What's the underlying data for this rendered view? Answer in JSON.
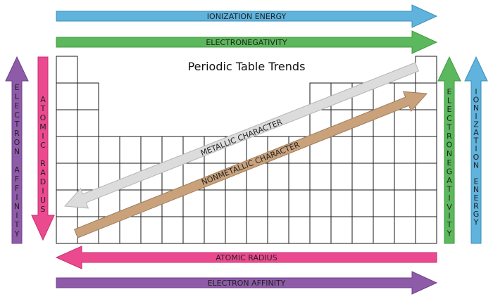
{
  "title": "Periodic Table Trends",
  "arrows": {
    "ionization_top": {
      "label": "IONIZATION ENERGY",
      "color": "#5fb3dd",
      "direction": "right"
    },
    "electroneg_top": {
      "label": "ELECTRONEGATIVITY",
      "color": "#5cb85c",
      "direction": "right"
    },
    "atomic_radius_bottom": {
      "label": "ATOMIC RADIUS",
      "color": "#ec4a8f",
      "direction": "left"
    },
    "electron_affinity_bottom": {
      "label": "ELECTRON AFFINITY",
      "color": "#8e5ba8",
      "direction": "right"
    },
    "electron_affinity_left": {
      "label": "ELECTRON AFFINITY",
      "color": "#8e5ba8",
      "direction": "up"
    },
    "atomic_radius_left": {
      "label": "ATOMIC RADIUS",
      "color": "#ec4a8f",
      "direction": "down"
    },
    "electroneg_right": {
      "label": "ELECTRONEGATIVITY",
      "color": "#5cb85c",
      "direction": "up"
    },
    "ionization_right": {
      "label": "IONIZATION ENERGY",
      "color": "#5fb3dd",
      "direction": "up"
    },
    "metallic": {
      "label": "METALLIC CHARACTER",
      "color": "#dcdcdc",
      "direction": "down-left"
    },
    "nonmetallic": {
      "label": "NONMETALLIC CHARACTER",
      "color": "#c9a27c",
      "direction": "up-right"
    }
  },
  "table": {
    "columns": 18,
    "rows": 7,
    "layout": "periodic-table-main-block"
  }
}
